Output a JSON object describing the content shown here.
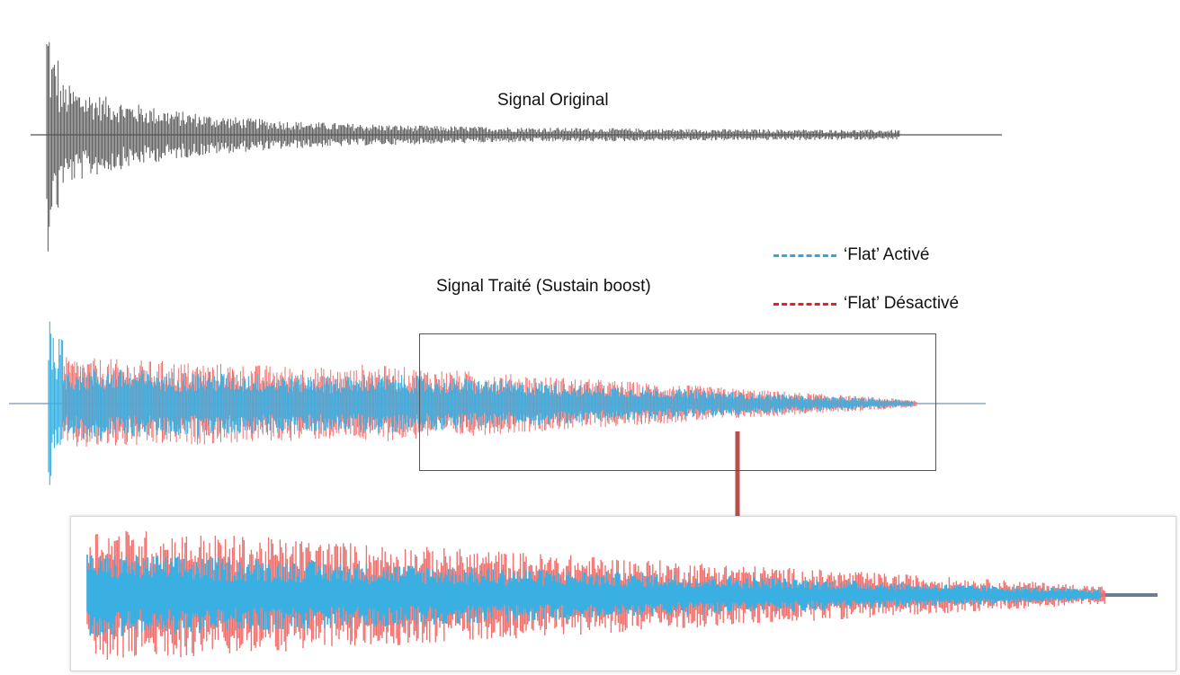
{
  "labels": {
    "original": "Signal Original",
    "processed": "Signal Traité (Sustain boost)"
  },
  "legend": [
    {
      "label": "‘Flat’ Activé",
      "color": "#29a9dd"
    },
    {
      "label": "‘Flat’ Désactivé",
      "color": "#ee1c24"
    }
  ],
  "colors": {
    "original_wave": "#555555",
    "active_wave": "#3ab0e2",
    "inactive_wave": "#f0706e",
    "baseline": "#8fa6b8",
    "arrow": "#b5504c"
  }
}
